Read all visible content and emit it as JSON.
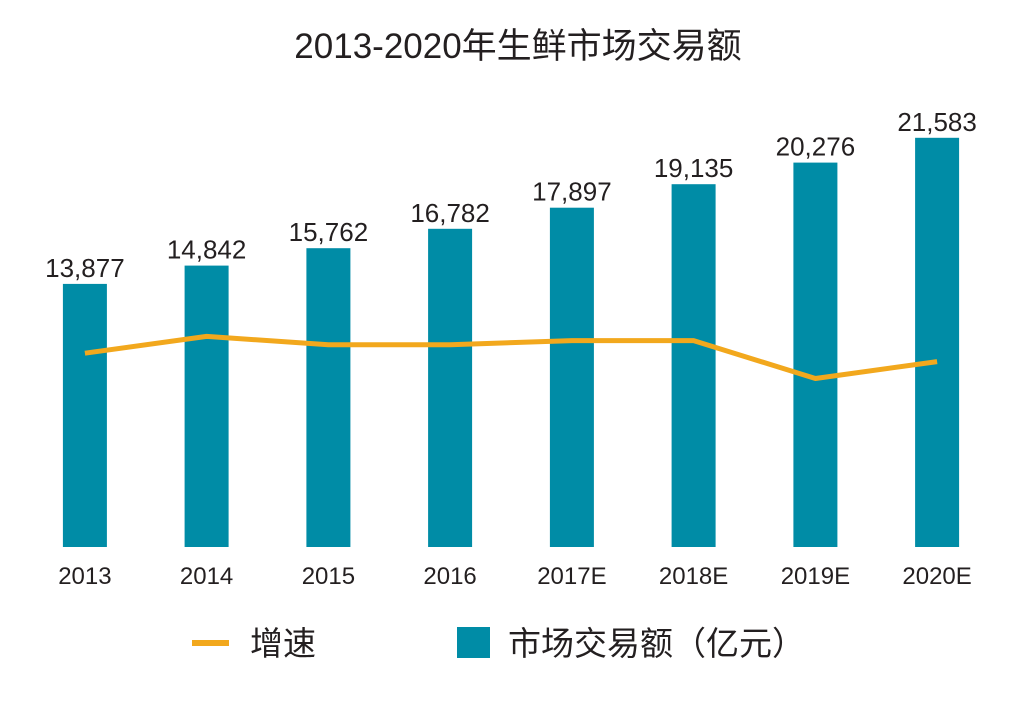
{
  "chart_data": {
    "type": "bar",
    "title": "2013-2020年生鲜市场交易额",
    "xlabel": "",
    "ylabel": "",
    "categories": [
      "2013",
      "2014",
      "2015",
      "2016",
      "2017E",
      "2018E",
      "2019E",
      "2020E"
    ],
    "series": [
      {
        "name": "市场交易额（亿元）",
        "type": "bar",
        "color": "#008ca6",
        "values": [
          13877,
          14842,
          15762,
          16782,
          17897,
          19135,
          20276,
          21583
        ],
        "labels": [
          "13,877",
          "14,842",
          "15,762",
          "16,782",
          "17,897",
          "19,135",
          "20,276",
          "21,583"
        ]
      },
      {
        "name": "增速",
        "type": "line",
        "color": "#f2a81d",
        "axis": "secondary",
        "values": [
          6.6,
          7.0,
          6.8,
          6.8,
          6.9,
          6.9,
          6.0,
          6.4
        ]
      }
    ],
    "ylim": [
      0,
      24000
    ],
    "y2lim": [
      2.0,
      12.8
    ],
    "grid": false,
    "legend": "bottom"
  }
}
